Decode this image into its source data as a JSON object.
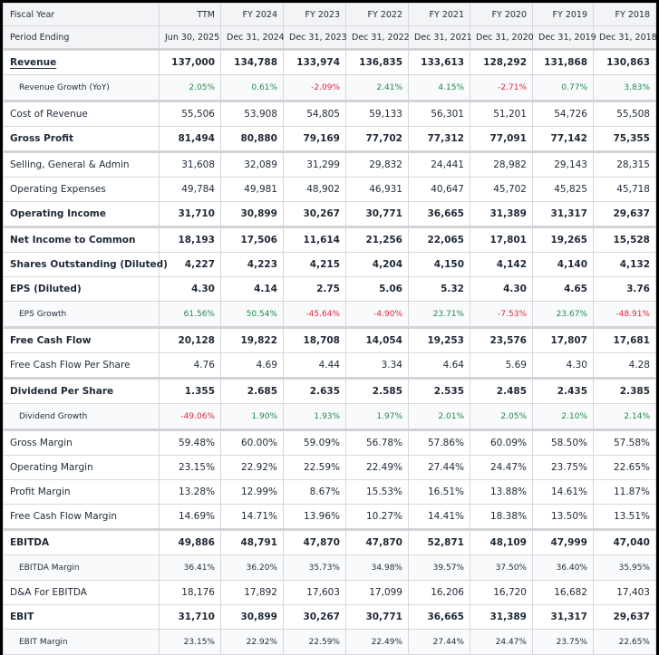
{
  "columns": {
    "fiscal_year_label": "Fiscal Year",
    "period_label": "Period Ending",
    "fiscal_years": [
      "TTM",
      "FY 2024",
      "FY 2023",
      "FY 2022",
      "FY 2021",
      "FY 2020",
      "FY 2019",
      "FY 2018"
    ],
    "period_ending": [
      "Jun 30, 2025",
      "Dec 31, 2024",
      "Dec 31, 2023",
      "Dec 31, 2022",
      "Dec 31, 2021",
      "Dec 31, 2020",
      "Dec 31, 2019",
      "Dec 31, 2018"
    ]
  },
  "colors": {
    "positive": "#1f8a4c",
    "negative": "#e3263a",
    "header_bg": "#f3f4f6"
  },
  "rows": [
    {
      "label": "Revenue",
      "style": "bold",
      "link": true,
      "sep": true,
      "values": [
        "137,000",
        "134,788",
        "133,974",
        "136,835",
        "133,613",
        "128,292",
        "131,868",
        "130,863"
      ]
    },
    {
      "label": "Revenue Growth (YoY)",
      "style": "sub",
      "colored": true,
      "values": [
        "2.05%",
        "0.61%",
        "-2.09%",
        "2.41%",
        "4.15%",
        "-2.71%",
        "0.77%",
        "3.83%"
      ]
    },
    {
      "label": "Cost of Revenue",
      "style": "norm",
      "sep": true,
      "values": [
        "55,506",
        "53,908",
        "54,805",
        "59,133",
        "56,301",
        "51,201",
        "54,726",
        "55,508"
      ]
    },
    {
      "label": "Gross Profit",
      "style": "bold",
      "values": [
        "81,494",
        "80,880",
        "79,169",
        "77,702",
        "77,312",
        "77,091",
        "77,142",
        "75,355"
      ]
    },
    {
      "label": "Selling, General & Admin",
      "style": "norm",
      "sep": true,
      "values": [
        "31,608",
        "32,089",
        "31,299",
        "29,832",
        "24,441",
        "28,982",
        "29,143",
        "28,315"
      ]
    },
    {
      "label": "Operating Expenses",
      "style": "norm",
      "values": [
        "49,784",
        "49,981",
        "48,902",
        "46,931",
        "40,647",
        "45,702",
        "45,825",
        "45,718"
      ]
    },
    {
      "label": "Operating Income",
      "style": "bold",
      "values": [
        "31,710",
        "30,899",
        "30,267",
        "30,771",
        "36,665",
        "31,389",
        "31,317",
        "29,637"
      ]
    },
    {
      "label": "Net Income to Common",
      "style": "bold",
      "sep": true,
      "values": [
        "18,193",
        "17,506",
        "11,614",
        "21,256",
        "22,065",
        "17,801",
        "19,265",
        "15,528"
      ]
    },
    {
      "label": "Shares Outstanding (Diluted)",
      "style": "bold",
      "values": [
        "4,227",
        "4,223",
        "4,215",
        "4,204",
        "4,150",
        "4,142",
        "4,140",
        "4,132"
      ]
    },
    {
      "label": "EPS (Diluted)",
      "style": "bold",
      "values": [
        "4.30",
        "4.14",
        "2.75",
        "5.06",
        "5.32",
        "4.30",
        "4.65",
        "3.76"
      ]
    },
    {
      "label": "EPS Growth",
      "style": "sub",
      "colored": true,
      "values": [
        "61.56%",
        "50.54%",
        "-45.64%",
        "-4.90%",
        "23.71%",
        "-7.53%",
        "23.67%",
        "-48.91%"
      ]
    },
    {
      "label": "Free Cash Flow",
      "style": "bold",
      "sep": true,
      "values": [
        "20,128",
        "19,822",
        "18,708",
        "14,054",
        "19,253",
        "23,576",
        "17,807",
        "17,681"
      ]
    },
    {
      "label": "Free Cash Flow Per Share",
      "style": "norm",
      "values": [
        "4.76",
        "4.69",
        "4.44",
        "3.34",
        "4.64",
        "5.69",
        "4.30",
        "4.28"
      ]
    },
    {
      "label": "Dividend Per Share",
      "style": "bold",
      "sep": true,
      "values": [
        "1.355",
        "2.685",
        "2.635",
        "2.585",
        "2.535",
        "2.485",
        "2.435",
        "2.385"
      ]
    },
    {
      "label": "Dividend Growth",
      "style": "sub",
      "colored": true,
      "values": [
        "-49.06%",
        "1.90%",
        "1.93%",
        "1.97%",
        "2.01%",
        "2.05%",
        "2.10%",
        "2.14%"
      ]
    },
    {
      "label": "Gross Margin",
      "style": "norm",
      "sep": true,
      "values": [
        "59.48%",
        "60.00%",
        "59.09%",
        "56.78%",
        "57.86%",
        "60.09%",
        "58.50%",
        "57.58%"
      ]
    },
    {
      "label": "Operating Margin",
      "style": "norm",
      "values": [
        "23.15%",
        "22.92%",
        "22.59%",
        "22.49%",
        "27.44%",
        "24.47%",
        "23.75%",
        "22.65%"
      ]
    },
    {
      "label": "Profit Margin",
      "style": "norm",
      "values": [
        "13.28%",
        "12.99%",
        "8.67%",
        "15.53%",
        "16.51%",
        "13.88%",
        "14.61%",
        "11.87%"
      ]
    },
    {
      "label": "Free Cash Flow Margin",
      "style": "norm",
      "values": [
        "14.69%",
        "14.71%",
        "13.96%",
        "10.27%",
        "14.41%",
        "18.38%",
        "13.50%",
        "13.51%"
      ]
    },
    {
      "label": "EBITDA",
      "style": "bold",
      "sep": true,
      "values": [
        "49,886",
        "48,791",
        "47,870",
        "47,870",
        "52,871",
        "48,109",
        "47,999",
        "47,040"
      ]
    },
    {
      "label": "EBITDA Margin",
      "style": "sub",
      "values": [
        "36.41%",
        "36.20%",
        "35.73%",
        "34.98%",
        "39.57%",
        "37.50%",
        "36.40%",
        "35.95%"
      ]
    },
    {
      "label": "D&A For EBITDA",
      "style": "norm",
      "values": [
        "18,176",
        "17,892",
        "17,603",
        "17,099",
        "16,206",
        "16,720",
        "16,682",
        "17,403"
      ]
    },
    {
      "label": "EBIT",
      "style": "bold",
      "values": [
        "31,710",
        "30,899",
        "30,267",
        "30,771",
        "36,665",
        "31,389",
        "31,317",
        "29,637"
      ]
    },
    {
      "label": "EBIT Margin",
      "style": "sub",
      "values": [
        "23.15%",
        "22.92%",
        "22.59%",
        "22.49%",
        "27.44%",
        "24.47%",
        "23.75%",
        "22.65%"
      ]
    }
  ]
}
